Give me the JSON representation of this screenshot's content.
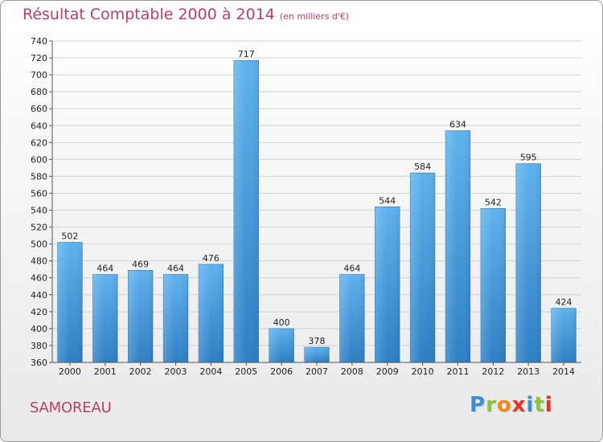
{
  "title": "Résultat Comptable 2000 à 2014",
  "unit_note": "(en milliers d'€)",
  "commune": "SAMOREAU",
  "logo": {
    "text": "Proxiti",
    "letter_colors": [
      "#3a8fd6",
      "#8bc43f",
      "#f08a1c",
      "#e0362f",
      "#3a8fd6",
      "#8bc43f",
      "#e0362f"
    ]
  },
  "colors": {
    "bar_top": "#5fb2ee",
    "bar_bottom": "#2d7fc4",
    "grid": "#d3d3d3",
    "axis_text": "#222222",
    "title": "#b5406a"
  },
  "chart_data": {
    "type": "bar",
    "categories": [
      "2000",
      "2001",
      "2002",
      "2003",
      "2004",
      "2005",
      "2006",
      "2007",
      "2008",
      "2009",
      "2010",
      "2011",
      "2012",
      "2013",
      "2014"
    ],
    "values": [
      502,
      464,
      469,
      464,
      476,
      717,
      400,
      378,
      464,
      544,
      584,
      634,
      542,
      595,
      424
    ],
    "ylim": [
      360,
      740
    ],
    "ytick_step": 20,
    "grid": true,
    "title": "Résultat Comptable 2000 à 2014",
    "xlabel": "",
    "ylabel": ""
  }
}
